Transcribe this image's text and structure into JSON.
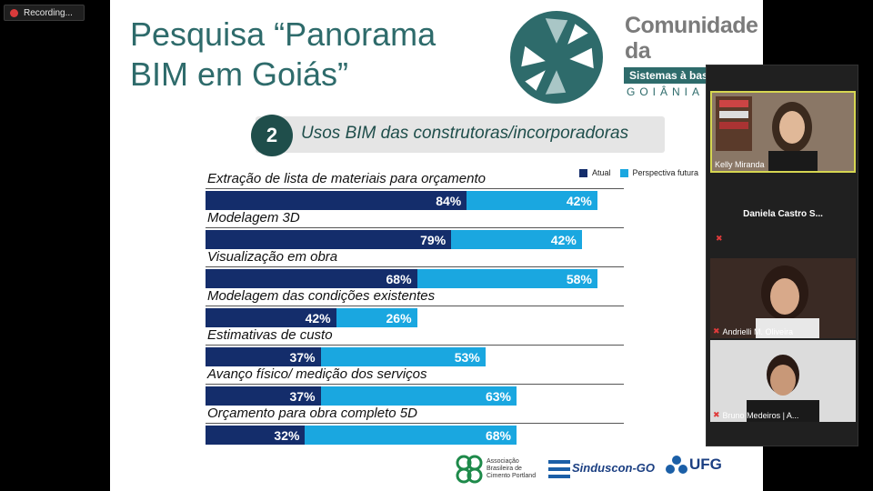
{
  "recording": {
    "label": "Recording..."
  },
  "slide": {
    "title": "Pesquisa “Panorama\nBIM em Goiás”",
    "brand_title": "Comunidade\nda Construção",
    "brand_tag": "Sistemas à base de",
    "brand_city": "GOIÂNIA",
    "section_number": "2",
    "section_title": "Usos BIM das construtoras/incorporadoras",
    "legend": {
      "atual": "Atual",
      "futura": "Perspectiva futura"
    },
    "colors": {
      "atual": "#142d6b",
      "futura": "#1aa7e0",
      "brand": "#2e6b6b"
    },
    "footer": {
      "abcp": "Associação Brasileira de Cimento Portland",
      "sinduscon": "Sinduscon-GO",
      "ufg": "UFG"
    }
  },
  "chart_data": {
    "type": "bar",
    "orientation": "horizontal-stacked",
    "categories": [
      "Extração de lista de materiais para orçamento",
      "Modelagem 3D",
      "Visualização em obra",
      "Modelagem das condições existentes",
      "Estimativas de custo",
      "Avanço físico/ medição dos serviços",
      "Orçamento para obra completo 5D"
    ],
    "series": [
      {
        "name": "Atual",
        "values": [
          84,
          79,
          68,
          42,
          37,
          37,
          32
        ],
        "labels": [
          "84%",
          "79%",
          "68%",
          "42%",
          "37%",
          "37%",
          "32%"
        ]
      },
      {
        "name": "Perspectiva futura",
        "values": [
          42,
          42,
          58,
          26,
          53,
          63,
          68
        ],
        "labels": [
          "42%",
          "42%",
          "58%",
          "26%",
          "53%",
          "63%",
          "68%"
        ]
      }
    ]
  },
  "participants": [
    {
      "name": "Kelly Miranda",
      "muted": false
    },
    {
      "name": "Daniela Castro S...",
      "muted": true
    },
    {
      "name": "Andrielli M. Oliveira",
      "muted": true
    },
    {
      "name": "Bruno Medeiros | A...",
      "muted": true
    }
  ]
}
